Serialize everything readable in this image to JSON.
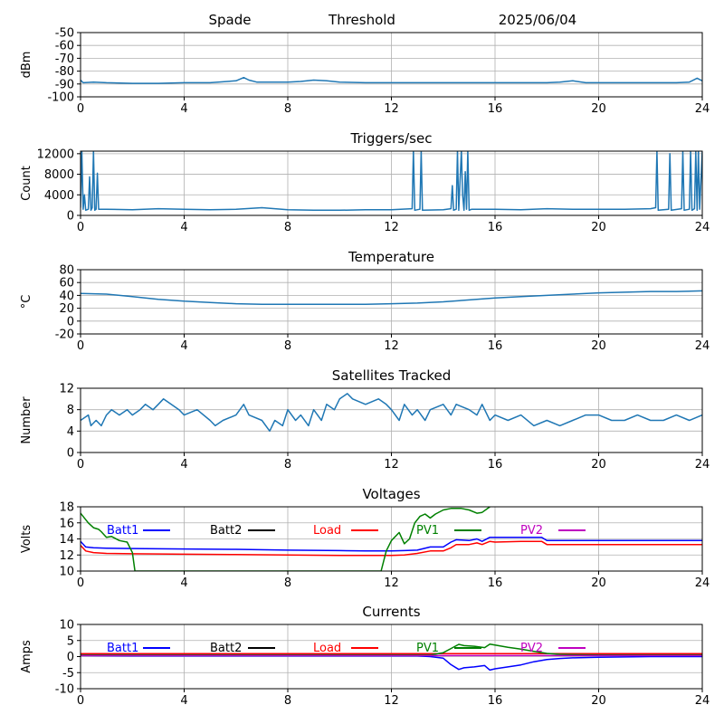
{
  "header": {
    "station": "Spade",
    "mode": "Threshold",
    "date": "2025/06/04"
  },
  "colors": {
    "series": "#1f77b4",
    "grid": "#b0b0b0",
    "batt1": "#0000ff",
    "batt2": "#000000",
    "load": "#ff0000",
    "pv1": "#008000",
    "pv2": "#bf00bf"
  },
  "chart_data": [
    {
      "id": "rssi",
      "type": "line",
      "title": "",
      "xlabel": "",
      "ylabel": "dBm",
      "xlim": [
        0,
        24
      ],
      "ylim": [
        -100,
        -50
      ],
      "xticks": [
        0,
        4,
        8,
        12,
        16,
        20,
        24
      ],
      "yticks": [
        -100,
        -90,
        -80,
        -70,
        -60,
        -50
      ],
      "grid": true,
      "series": [
        {
          "color": "#1f77b4",
          "x": [
            0,
            0.1,
            0.5,
            1,
            2,
            3,
            4,
            5,
            6,
            6.3,
            6.5,
            6.8,
            7,
            8,
            8.5,
            9,
            9.5,
            10,
            11,
            12,
            13,
            14,
            15,
            16,
            17,
            18,
            18.5,
            19,
            19.5,
            20,
            21,
            22,
            23,
            23.5,
            23.8,
            24
          ],
          "y": [
            -87,
            -89,
            -88.5,
            -89,
            -89.5,
            -89.5,
            -89,
            -89,
            -87.5,
            -85,
            -87,
            -88.5,
            -88.5,
            -88.5,
            -88,
            -87,
            -87.5,
            -88.5,
            -89,
            -89,
            -89,
            -89,
            -89,
            -89,
            -89,
            -89,
            -88.5,
            -87.5,
            -89,
            -89,
            -89,
            -89,
            -89,
            -88.5,
            -85.5,
            -87.5
          ]
        }
      ]
    },
    {
      "id": "triggers",
      "type": "line",
      "title": "Triggers/sec",
      "xlabel": "",
      "ylabel": "Count",
      "xlim": [
        0,
        24
      ],
      "ylim": [
        0,
        12500
      ],
      "xticks": [
        0,
        4,
        8,
        12,
        16,
        20,
        24
      ],
      "yticks": [
        0,
        4000,
        8000,
        12000
      ],
      "grid": true,
      "series": [
        {
          "color": "#1f77b4",
          "x": [
            0,
            0.05,
            0.1,
            0.15,
            0.2,
            0.3,
            0.35,
            0.4,
            0.45,
            0.5,
            0.55,
            0.6,
            0.65,
            0.7,
            1,
            2,
            3,
            4,
            5,
            6,
            7,
            8,
            9,
            10,
            11,
            12,
            12.8,
            12.85,
            12.9,
            13.1,
            13.15,
            13.2,
            14,
            14.3,
            14.35,
            14.4,
            14.5,
            14.55,
            14.6,
            14.7,
            14.75,
            14.8,
            14.85,
            14.9,
            14.95,
            15,
            15.1,
            16,
            17,
            18,
            19,
            20,
            21,
            22,
            22.2,
            22.25,
            22.3,
            22.7,
            22.75,
            22.8,
            23.2,
            23.25,
            23.3,
            23.5,
            23.55,
            23.6,
            23.7,
            23.75,
            23.8,
            23.85,
            23.9,
            24
          ],
          "y": [
            1500,
            12500,
            1200,
            4000,
            1000,
            1200,
            7500,
            1000,
            1500,
            12500,
            1000,
            1200,
            8200,
            1200,
            1200,
            1100,
            1300,
            1200,
            1100,
            1200,
            1500,
            1100,
            1000,
            1000,
            1100,
            1100,
            1300,
            12500,
            1000,
            1200,
            12500,
            1000,
            1100,
            1300,
            5800,
            1000,
            1200,
            12500,
            1000,
            12500,
            4000,
            1000,
            8500,
            1200,
            12500,
            1000,
            1200,
            1200,
            1100,
            1300,
            1200,
            1200,
            1200,
            1300,
            1500,
            12500,
            1000,
            1200,
            12000,
            1000,
            1300,
            12500,
            1000,
            1200,
            12500,
            1000,
            1300,
            12500,
            1000,
            12500,
            1200,
            12500
          ]
        }
      ]
    },
    {
      "id": "temperature",
      "type": "line",
      "title": "Temperature",
      "xlabel": "",
      "ylabel": "°C",
      "xlim": [
        0,
        24
      ],
      "ylim": [
        -20,
        80
      ],
      "xticks": [
        0,
        4,
        8,
        12,
        16,
        20,
        24
      ],
      "yticks": [
        -20,
        0,
        20,
        40,
        60,
        80
      ],
      "grid": true,
      "series": [
        {
          "color": "#1f77b4",
          "x": [
            0,
            1,
            2,
            3,
            4,
            5,
            6,
            7,
            8,
            9,
            10,
            11,
            12,
            13,
            14,
            15,
            16,
            17,
            18,
            19,
            20,
            21,
            22,
            23,
            24
          ],
          "y": [
            43,
            42,
            38,
            34,
            31,
            29,
            27,
            26,
            26,
            26,
            26,
            26,
            27,
            28,
            30,
            33,
            36,
            38,
            40,
            42,
            44,
            45,
            46,
            46,
            47
          ]
        }
      ]
    },
    {
      "id": "satellites",
      "type": "line",
      "title": "Satellites Tracked",
      "xlabel": "",
      "ylabel": "Number",
      "xlim": [
        0,
        24
      ],
      "ylim": [
        0,
        12
      ],
      "xticks": [
        0,
        4,
        8,
        12,
        16,
        20,
        24
      ],
      "yticks": [
        0,
        4,
        8,
        12
      ],
      "grid": true,
      "series": [
        {
          "color": "#1f77b4",
          "x": [
            0,
            0.3,
            0.4,
            0.6,
            0.8,
            1,
            1.2,
            1.5,
            1.8,
            2,
            2.3,
            2.5,
            2.8,
            3,
            3.2,
            3.5,
            3.8,
            4,
            4.5,
            5,
            5.2,
            5.5,
            6,
            6.3,
            6.5,
            7,
            7.3,
            7.5,
            7.8,
            8,
            8.3,
            8.5,
            8.8,
            9,
            9.3,
            9.5,
            9.8,
            10,
            10.3,
            10.5,
            11,
            11.5,
            11.8,
            12,
            12.3,
            12.5,
            12.8,
            13,
            13.3,
            13.5,
            14,
            14.3,
            14.5,
            15,
            15.3,
            15.5,
            15.8,
            16,
            16.5,
            17,
            17.5,
            18,
            18.5,
            19,
            19.5,
            20,
            20.5,
            21,
            21.5,
            22,
            22.5,
            23,
            23.5,
            24
          ],
          "y": [
            6,
            7,
            5,
            6,
            5,
            7,
            8,
            7,
            8,
            7,
            8,
            9,
            8,
            9,
            10,
            9,
            8,
            7,
            8,
            6,
            5,
            6,
            7,
            9,
            7,
            6,
            4,
            6,
            5,
            8,
            6,
            7,
            5,
            8,
            6,
            9,
            8,
            10,
            11,
            10,
            9,
            10,
            9,
            8,
            6,
            9,
            7,
            8,
            6,
            8,
            9,
            7,
            9,
            8,
            7,
            9,
            6,
            7,
            6,
            7,
            5,
            6,
            5,
            6,
            7,
            7,
            6,
            6,
            7,
            6,
            6,
            7,
            6,
            7
          ]
        }
      ]
    },
    {
      "id": "voltages",
      "type": "line",
      "title": "Voltages",
      "xlabel": "",
      "ylabel": "Volts",
      "xlim": [
        0,
        24
      ],
      "ylim": [
        10,
        18
      ],
      "xticks": [
        0,
        4,
        8,
        12,
        16,
        20,
        24
      ],
      "yticks": [
        10,
        12,
        14,
        16,
        18
      ],
      "grid": true,
      "legend": [
        "Batt1",
        "Batt2",
        "Load",
        "PV1",
        "PV2"
      ],
      "series": [
        {
          "name": "Batt1",
          "color": "#0000ff",
          "x": [
            0,
            0.2,
            0.5,
            1,
            2,
            4,
            6,
            8,
            10,
            11,
            12,
            12.5,
            13,
            13.5,
            14,
            14.3,
            14.5,
            15,
            15.3,
            15.5,
            15.8,
            16,
            17,
            17.5,
            17.8,
            18,
            20,
            22,
            24
          ],
          "y": [
            13.7,
            13.0,
            12.9,
            12.85,
            12.8,
            12.75,
            12.7,
            12.6,
            12.55,
            12.5,
            12.5,
            12.55,
            12.6,
            13.0,
            13.0,
            13.6,
            13.9,
            13.8,
            14.0,
            13.7,
            14.2,
            14.2,
            14.2,
            14.2,
            14.2,
            13.8,
            13.8,
            13.8,
            13.8
          ]
        },
        {
          "name": "Load",
          "color": "#ff0000",
          "x": [
            0,
            0.2,
            0.5,
            1,
            2,
            4,
            6,
            8,
            10,
            12,
            12.5,
            13,
            13.5,
            14,
            14.3,
            14.5,
            15,
            15.3,
            15.5,
            15.8,
            16,
            17,
            17.5,
            17.8,
            18,
            20,
            22,
            24
          ],
          "y": [
            13.2,
            12.5,
            12.3,
            12.2,
            12.15,
            12.1,
            12.05,
            12.0,
            11.95,
            11.95,
            12.0,
            12.2,
            12.5,
            12.5,
            12.9,
            13.3,
            13.3,
            13.5,
            13.3,
            13.7,
            13.6,
            13.7,
            13.7,
            13.7,
            13.3,
            13.3,
            13.3,
            13.3
          ]
        },
        {
          "name": "PV1",
          "color": "#008000",
          "x": [
            0,
            0.3,
            0.5,
            0.7,
            0.8,
            1,
            1.2,
            1.5,
            1.8,
            2,
            2.1,
            11.6,
            11.8,
            12,
            12.3,
            12.5,
            12.7,
            12.9,
            13.1,
            13.3,
            13.5,
            13.7,
            14,
            14.3,
            14.7,
            15,
            15.3,
            15.5,
            15.8
          ],
          "y": [
            17.2,
            16.0,
            15.4,
            15.2,
            14.9,
            14.2,
            14.3,
            13.8,
            13.6,
            12.3,
            10.0,
            10.0,
            12.5,
            13.8,
            14.8,
            13.4,
            14.0,
            16.0,
            16.8,
            17.1,
            16.6,
            17.1,
            17.6,
            17.8,
            17.8,
            17.6,
            17.2,
            17.3,
            18.0
          ]
        }
      ]
    },
    {
      "id": "currents",
      "type": "line",
      "title": "Currents",
      "xlabel": "",
      "ylabel": "Amps",
      "xlim": [
        0,
        24
      ],
      "ylim": [
        -10,
        10
      ],
      "xticks": [
        0,
        4,
        8,
        12,
        16,
        20,
        24
      ],
      "yticks": [
        -10,
        -5,
        0,
        5,
        10
      ],
      "grid": true,
      "legend": [
        "Batt1",
        "Batt2",
        "Load",
        "PV1",
        "PV2"
      ],
      "series": [
        {
          "name": "Batt1",
          "color": "#0000ff",
          "x": [
            0,
            2,
            4,
            6,
            8,
            10,
            12,
            13,
            13.5,
            14,
            14.3,
            14.6,
            14.8,
            15.2,
            15.6,
            15.8,
            16,
            16.5,
            17,
            17.5,
            18,
            18.5,
            19,
            20,
            22,
            24
          ],
          "y": [
            0.3,
            0.2,
            0.2,
            0.2,
            0.2,
            0.2,
            0.2,
            0.2,
            0.0,
            -0.5,
            -2.5,
            -4.0,
            -3.5,
            -3.2,
            -2.8,
            -4.2,
            -3.8,
            -3.2,
            -2.6,
            -1.6,
            -0.9,
            -0.6,
            -0.4,
            -0.2,
            0.0,
            0.0
          ]
        },
        {
          "name": "Load",
          "color": "#ff0000",
          "x": [
            0,
            4,
            8,
            12,
            14,
            16,
            20,
            24
          ],
          "y": [
            0.9,
            0.9,
            0.9,
            0.9,
            0.9,
            0.9,
            0.9,
            0.9
          ]
        },
        {
          "name": "PV1",
          "color": "#008000",
          "x": [
            0,
            2,
            4,
            6,
            8,
            10,
            12,
            13.5,
            14,
            14.3,
            14.6,
            14.8,
            15.2,
            15.6,
            15.8,
            16,
            16.5,
            17,
            17.5,
            18,
            18.5,
            19,
            20,
            22,
            24
          ],
          "y": [
            0.5,
            0.5,
            0.5,
            0.5,
            0.5,
            0.5,
            0.5,
            0.5,
            1.2,
            2.5,
            3.8,
            3.4,
            3.2,
            2.8,
            3.9,
            3.6,
            2.9,
            2.3,
            1.6,
            1.0,
            0.7,
            0.6,
            0.5,
            0.5,
            0.5
          ]
        },
        {
          "name": "PV2",
          "color": "#bf00bf",
          "x": [
            0,
            4,
            8,
            12,
            14,
            16,
            20,
            24
          ],
          "y": [
            0.3,
            0.3,
            0.3,
            0.3,
            0.3,
            0.3,
            0.3,
            0.3
          ]
        }
      ]
    }
  ]
}
